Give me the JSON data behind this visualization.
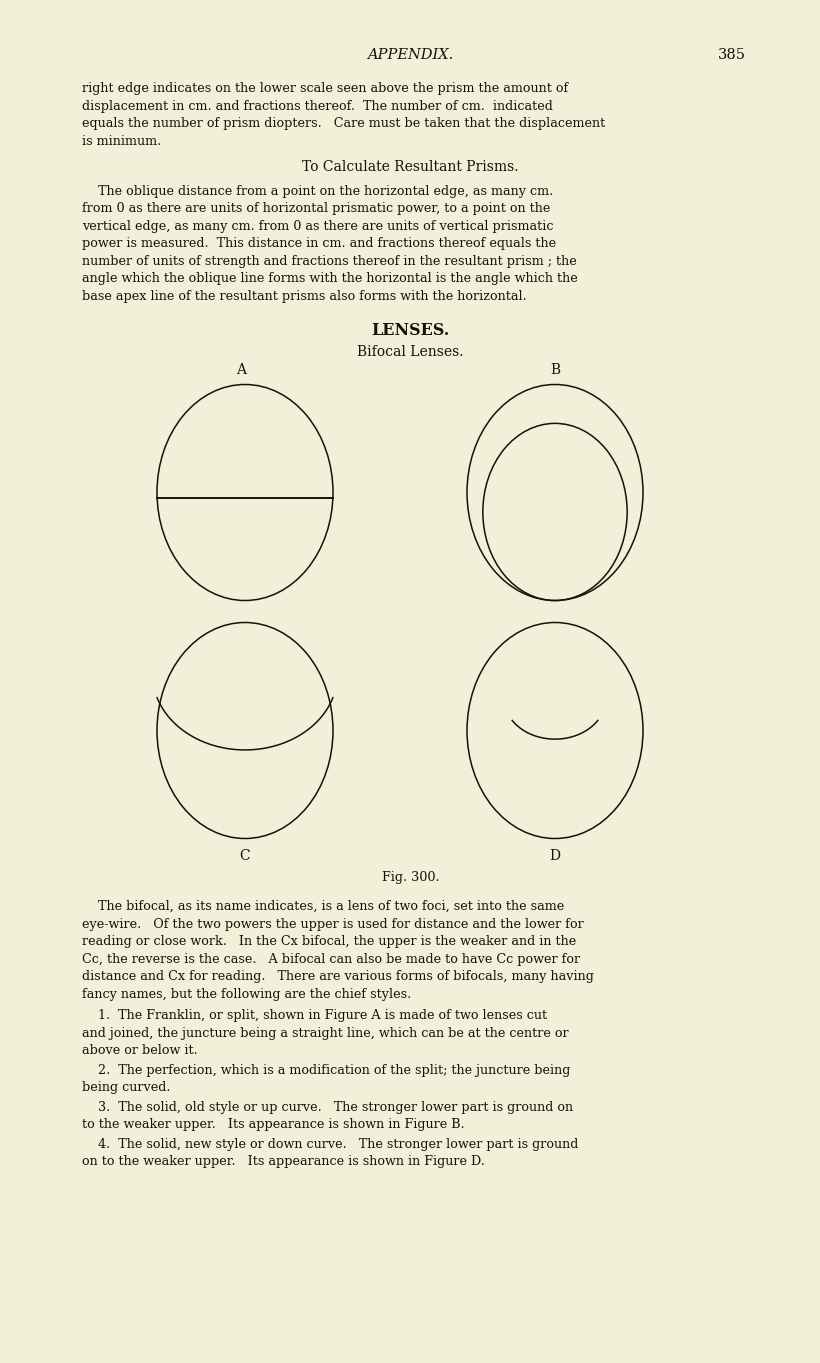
{
  "bg_color": "#f2f0d8",
  "text_color": "#1a1008",
  "page_width": 8.01,
  "page_height": 13.43,
  "header_title": "APPENDIX.",
  "header_page": "385",
  "body_text_1a": "right edge indicates on the lower scale seen above the prism the amount of",
  "body_text_1b": "displacement in cm. and fractions thereof.  The number of cm.  indicated",
  "body_text_1c": "equals the number of prism diopters.   Care must be taken that the displacement",
  "body_text_1d": "is minimum.",
  "section_title": "To Calculate Resultant Prisms.",
  "para2_lines": [
    "    The oblique distance from a point on the horizontal edge, as many cm.",
    "from 0 as there are units of horizontal prismatic power, to a point on the",
    "vertical edge, as many cm. from 0 as there are units of vertical prismatic",
    "power is measured.  This distance in cm. and fractions thereof equals the",
    "number of units of strength and fractions thereof in the resultant prism ; the",
    "angle which the oblique line forms with the horizontal is the angle which the",
    "base apex line of the resultant prisms also forms with the horizontal."
  ],
  "lenses_title": "LENSES.",
  "bifocal_subtitle": "Bifocal Lenses.",
  "fig_caption": "Fig. 300.",
  "para3_lines": [
    "    The bifocal, as its name indicates, is a lens of two foci, set into the same",
    "eye-wire.   Of the two powers the upper is used for distance and the lower for",
    "reading or close work.   In the Cx bifocal, the upper is the weaker and in the",
    "Cc, the reverse is the case.   A bifocal can also be made to have Cc power for",
    "distance and Cx for reading.   There are various forms of bifocals, many having",
    "fancy names, but the following are the chief styles."
  ],
  "item1_lines": [
    "    1.  The Franklin, or split, shown in Figure A is made of two lenses cut",
    "and joined, the juncture being a straight line, which can be at the centre or",
    "above or below it."
  ],
  "item2_lines": [
    "    2.  The perfection, which is a modification of the split; the juncture being",
    "being curved."
  ],
  "item3_lines": [
    "    3.  The solid, old style or up curve.   The stronger lower part is ground on",
    "to the weaker upper.   Its appearance is shown in Figure B."
  ],
  "item4_lines": [
    "    4.  The solid, new style or down curve.   The stronger lower part is ground",
    "on to the weaker upper.   Its appearance is shown in Figure D."
  ]
}
